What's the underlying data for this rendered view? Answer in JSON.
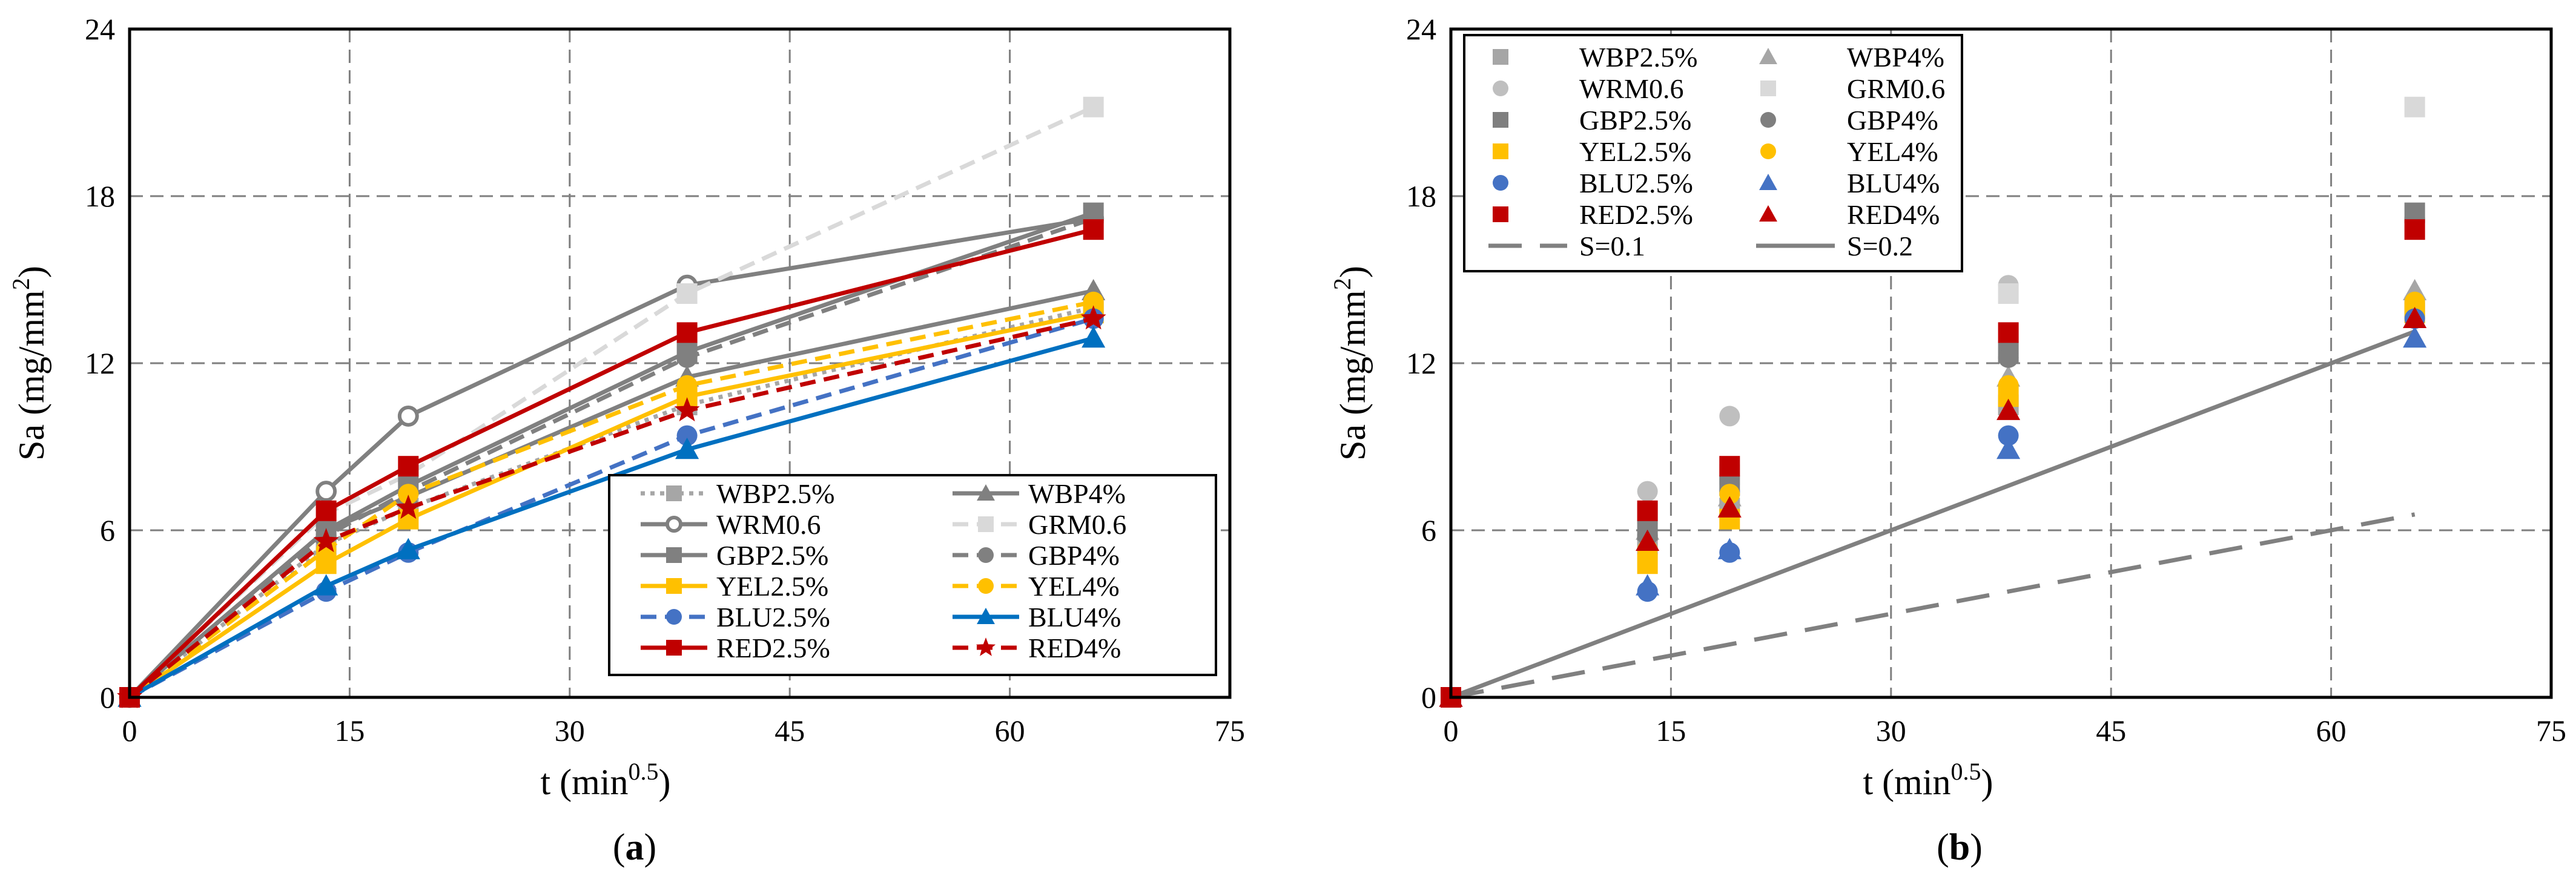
{
  "panels": [
    {
      "id": "a",
      "label_open": "(",
      "label_letter": "a",
      "label_close": ")",
      "xlabel": "t (min",
      "xlabel_sup": "0.5",
      "xlabel_end": ")",
      "ylabel": "Sa (mg/mm",
      "ylabel_sup": "2",
      "ylabel_end": ")",
      "xlim": [
        0,
        75
      ],
      "ylim": [
        0,
        24
      ],
      "xticks": [
        0,
        15,
        30,
        45,
        60,
        75
      ],
      "yticks": [
        0,
        6,
        12,
        18,
        24
      ]
    },
    {
      "id": "b",
      "label_open": "(",
      "label_letter": "b",
      "label_close": ")",
      "xlabel": "t (min",
      "xlabel_sup": "0.5",
      "xlabel_end": ")",
      "ylabel": "Sa (mg/mm",
      "ylabel_sup": "2",
      "ylabel_end": ")",
      "xlim": [
        0,
        75
      ],
      "ylim": [
        0,
        24
      ],
      "xticks": [
        0,
        15,
        30,
        45,
        60,
        75
      ],
      "yticks": [
        0,
        6,
        12,
        18,
        24
      ]
    }
  ],
  "chart_data": [
    {
      "type": "line",
      "panel": "a",
      "title": "",
      "xlabel": "t (min^0.5)",
      "ylabel": "Sa (mg/mm^2)",
      "xlim": [
        0,
        75
      ],
      "ylim": [
        0,
        24
      ],
      "grid": true,
      "legend_position": "bottom-right",
      "series": [
        {
          "name": "WBP2.5%",
          "color": "#a6a6a6",
          "dash": "dotted",
          "marker": "square",
          "x": [
            0,
            13.4,
            19,
            38,
            65.7
          ],
          "y": [
            0,
            5.5,
            6.8,
            10.5,
            14.0
          ]
        },
        {
          "name": "WBP4%",
          "color": "#808080",
          "dash": "solid",
          "marker": "triangle",
          "x": [
            0,
            13.4,
            19,
            38,
            65.7
          ],
          "y": [
            0,
            6.0,
            7.2,
            11.5,
            14.6
          ]
        },
        {
          "name": "WRM0.6",
          "color": "#808080",
          "dash": "solid",
          "marker": "circle-open",
          "x": [
            0,
            13.4,
            19,
            38,
            65.7
          ],
          "y": [
            0,
            7.4,
            10.1,
            14.8,
            17.2
          ]
        },
        {
          "name": "GRM0.6",
          "color": "#d9d9d9",
          "dash": "dashed",
          "marker": "square",
          "x": [
            0,
            13.4,
            19,
            38,
            65.7
          ],
          "y": [
            0,
            6.6,
            8.0,
            14.5,
            21.2
          ]
        },
        {
          "name": "GBP2.5%",
          "color": "#808080",
          "dash": "solid",
          "marker": "square",
          "x": [
            0,
            13.4,
            19,
            38,
            65.7
          ],
          "y": [
            0,
            6.0,
            7.6,
            12.4,
            17.4
          ]
        },
        {
          "name": "GBP4%",
          "color": "#808080",
          "dash": "dashed",
          "marker": "circle",
          "x": [
            0,
            13.4,
            19,
            38,
            65.7
          ],
          "y": [
            0,
            5.8,
            7.4,
            12.2,
            17.2
          ]
        },
        {
          "name": "YEL2.5%",
          "color": "#ffc000",
          "dash": "solid",
          "marker": "square",
          "x": [
            0,
            13.4,
            19,
            38,
            65.7
          ],
          "y": [
            0,
            4.8,
            6.4,
            10.8,
            13.8
          ]
        },
        {
          "name": "YEL4%",
          "color": "#ffc000",
          "dash": "dashed",
          "marker": "circle",
          "x": [
            0,
            13.4,
            19,
            38,
            65.7
          ],
          "y": [
            0,
            5.3,
            7.3,
            11.2,
            14.2
          ]
        },
        {
          "name": "BLU2.5%",
          "color": "#4472c4",
          "dash": "dashed",
          "marker": "circle",
          "x": [
            0,
            13.4,
            19,
            38,
            65.7
          ],
          "y": [
            0,
            3.8,
            5.2,
            9.4,
            13.6
          ]
        },
        {
          "name": "BLU4%",
          "color": "#0070c0",
          "dash": "solid",
          "marker": "triangle",
          "x": [
            0,
            13.4,
            19,
            38,
            65.7
          ],
          "y": [
            0,
            4.0,
            5.3,
            8.9,
            12.9
          ]
        },
        {
          "name": "RED2.5%",
          "color": "#c00000",
          "dash": "solid",
          "marker": "square",
          "x": [
            0,
            13.4,
            19,
            38,
            65.7
          ],
          "y": [
            0,
            6.7,
            8.3,
            13.1,
            16.8
          ]
        },
        {
          "name": "RED4%",
          "color": "#c00000",
          "dash": "dashed",
          "marker": "star",
          "x": [
            0,
            13.4,
            19,
            38,
            65.7
          ],
          "y": [
            0,
            5.6,
            6.8,
            10.3,
            13.6
          ]
        }
      ]
    },
    {
      "type": "scatter",
      "panel": "b",
      "title": "",
      "xlabel": "t (min^0.5)",
      "ylabel": "Sa (mg/mm^2)",
      "xlim": [
        0,
        75
      ],
      "ylim": [
        0,
        24
      ],
      "grid": true,
      "legend_position": "top-left",
      "series": [
        {
          "name": "WBP2.5%",
          "color": "#a6a6a6",
          "marker": "square",
          "x": [
            0,
            13.4,
            19,
            38,
            65.7
          ],
          "y": [
            0,
            5.5,
            6.8,
            10.5,
            14.0
          ]
        },
        {
          "name": "WBP4%",
          "color": "#a6a6a6",
          "marker": "triangle",
          "x": [
            0,
            13.4,
            19,
            38,
            65.7
          ],
          "y": [
            0,
            6.0,
            7.2,
            11.5,
            14.6
          ]
        },
        {
          "name": "WRM0.6",
          "color": "#bfbfbf",
          "marker": "circle",
          "x": [
            0,
            13.4,
            19,
            38,
            65.7
          ],
          "y": [
            0,
            7.4,
            10.1,
            14.8,
            17.2
          ]
        },
        {
          "name": "GRM0.6",
          "color": "#d9d9d9",
          "marker": "square",
          "x": [
            0,
            13.4,
            19,
            38,
            65.7
          ],
          "y": [
            0,
            6.6,
            8.0,
            14.5,
            21.2
          ]
        },
        {
          "name": "GBP2.5%",
          "color": "#7f7f7f",
          "marker": "square",
          "x": [
            0,
            13.4,
            19,
            38,
            65.7
          ],
          "y": [
            0,
            6.0,
            7.6,
            12.4,
            17.4
          ]
        },
        {
          "name": "GBP4%",
          "color": "#7f7f7f",
          "marker": "circle",
          "x": [
            0,
            13.4,
            19,
            38,
            65.7
          ],
          "y": [
            0,
            5.8,
            7.4,
            12.2,
            17.2
          ]
        },
        {
          "name": "YEL2.5%",
          "color": "#ffc000",
          "marker": "square",
          "x": [
            0,
            13.4,
            19,
            38,
            65.7
          ],
          "y": [
            0,
            4.8,
            6.4,
            10.8,
            13.8
          ]
        },
        {
          "name": "YEL4%",
          "color": "#ffc000",
          "marker": "circle",
          "x": [
            0,
            13.4,
            19,
            38,
            65.7
          ],
          "y": [
            0,
            5.3,
            7.3,
            11.2,
            14.2
          ]
        },
        {
          "name": "BLU2.5%",
          "color": "#4472c4",
          "marker": "circle",
          "x": [
            0,
            13.4,
            19,
            38,
            65.7
          ],
          "y": [
            0,
            3.8,
            5.2,
            9.4,
            13.6
          ]
        },
        {
          "name": "BLU4%",
          "color": "#4472c4",
          "marker": "triangle",
          "x": [
            0,
            13.4,
            19,
            38,
            65.7
          ],
          "y": [
            0,
            4.0,
            5.3,
            8.9,
            12.9
          ]
        },
        {
          "name": "RED2.5%",
          "color": "#c00000",
          "marker": "square",
          "x": [
            0,
            13.4,
            19,
            38,
            65.7
          ],
          "y": [
            0,
            6.7,
            8.3,
            13.1,
            16.8
          ]
        },
        {
          "name": "RED4%",
          "color": "#c00000",
          "marker": "triangle",
          "x": [
            0,
            13.4,
            19,
            38,
            65.7
          ],
          "y": [
            0,
            5.6,
            6.8,
            10.3,
            13.6
          ]
        }
      ],
      "reference_lines": [
        {
          "name": "S=0.1",
          "color": "#808080",
          "dash": "long-dash",
          "slope": 0.1,
          "x": [
            0,
            65.7
          ],
          "y": [
            0,
            6.57
          ]
        },
        {
          "name": "S=0.2",
          "color": "#808080",
          "dash": "solid",
          "slope": 0.2,
          "x": [
            0,
            65.7
          ],
          "y": [
            0,
            13.14
          ]
        }
      ]
    }
  ]
}
